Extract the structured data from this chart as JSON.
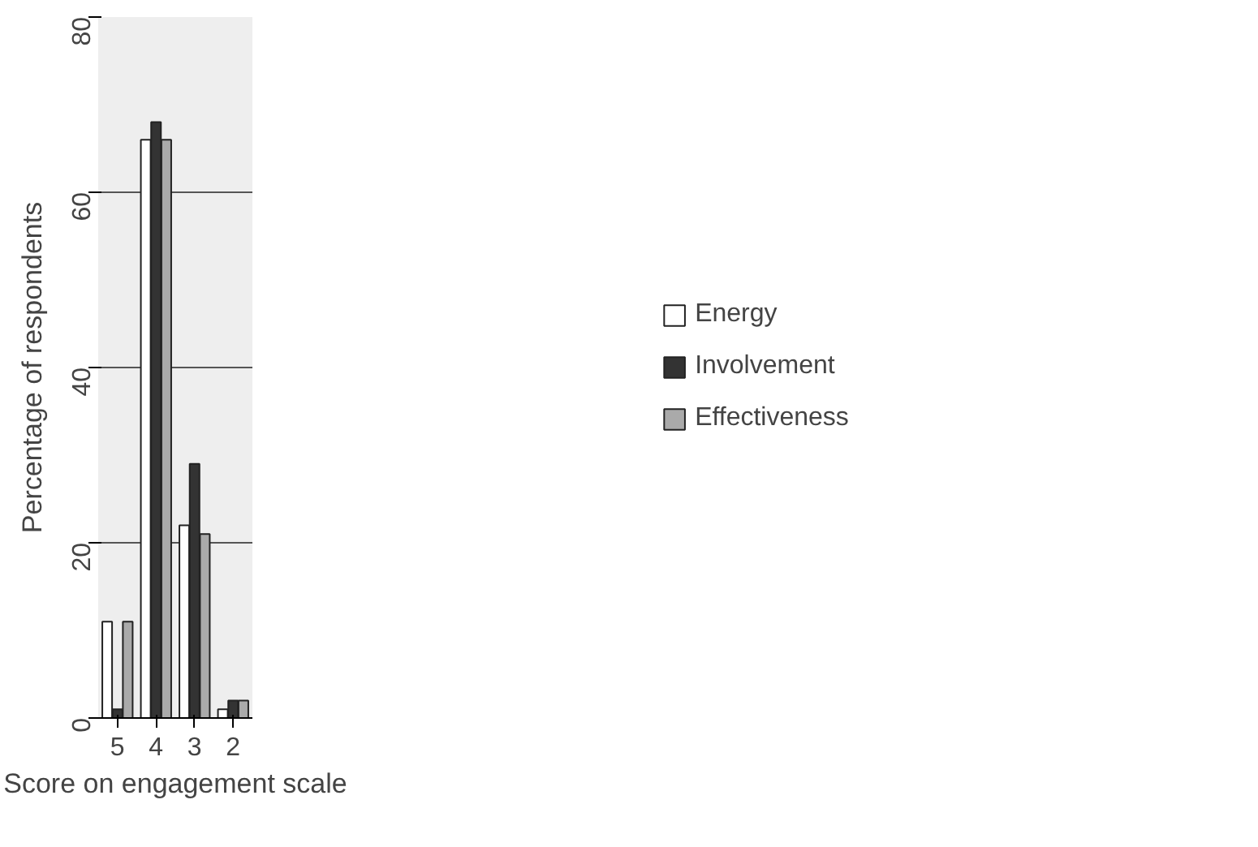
{
  "chart_data": {
    "type": "bar",
    "xlabel": "Score on engagement scale",
    "ylabel": "Percentage of respondents",
    "categories": [
      "5",
      "4",
      "3",
      "2"
    ],
    "series": [
      {
        "name": "Energy",
        "color": "#ffffff",
        "values": [
          11,
          66,
          22,
          1
        ]
      },
      {
        "name": "Involvement",
        "color": "#333333",
        "values": [
          1,
          68,
          29,
          2
        ]
      },
      {
        "name": "Effectiveness",
        "color": "#aaaaaa",
        "values": [
          11,
          66,
          21,
          2
        ]
      }
    ],
    "ylim": [
      0,
      80
    ],
    "yticks": [
      0,
      20,
      40,
      60,
      80
    ],
    "grid": "y",
    "legend": "right"
  }
}
